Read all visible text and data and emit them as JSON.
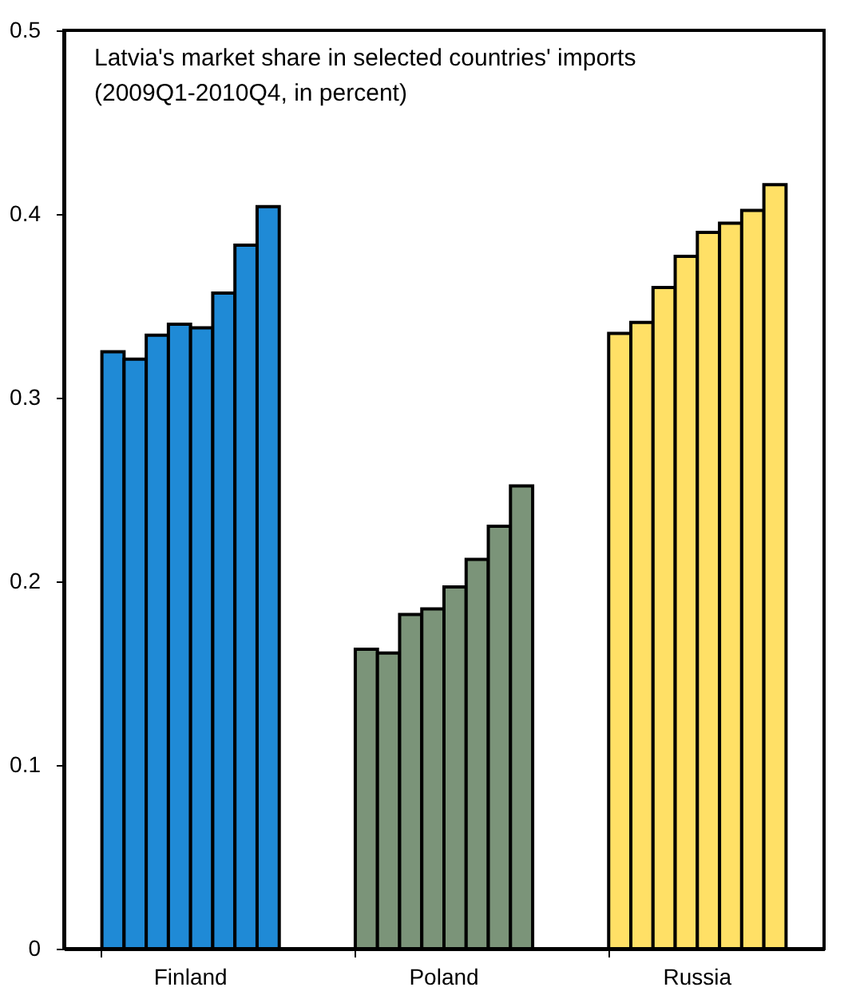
{
  "chart_data": {
    "type": "bar",
    "title": "Latvia's market share in selected countries' imports",
    "subtitle": "(2009Q1-2010Q4, in percent)",
    "categories": [
      "Finland",
      "Poland",
      "Russia"
    ],
    "series": [
      {
        "colors": [
          "#1f8ad6",
          "#7b9479",
          "#ffe066"
        ],
        "values": [
          0.325,
          0.163,
          0.335
        ]
      },
      {
        "colors": [
          "#1f8ad6",
          "#7b9479",
          "#ffe066"
        ],
        "values": [
          0.321,
          0.161,
          0.341
        ]
      },
      {
        "colors": [
          "#1f8ad6",
          "#7b9479",
          "#ffe066"
        ],
        "values": [
          0.334,
          0.182,
          0.36
        ]
      },
      {
        "colors": [
          "#1f8ad6",
          "#7b9479",
          "#ffe066"
        ],
        "values": [
          0.34,
          0.185,
          0.377
        ]
      },
      {
        "colors": [
          "#1f8ad6",
          "#7b9479",
          "#ffe066"
        ],
        "values": [
          0.338,
          0.197,
          0.39
        ]
      },
      {
        "colors": [
          "#1f8ad6",
          "#7b9479",
          "#ffe066"
        ],
        "values": [
          0.357,
          0.212,
          0.395
        ]
      },
      {
        "colors": [
          "#1f8ad6",
          "#7b9479",
          "#ffe066"
        ],
        "values": [
          0.383,
          0.23,
          0.402
        ]
      },
      {
        "colors": [
          "#1f8ad6",
          "#7b9479",
          "#ffe066"
        ],
        "values": [
          0.404,
          0.252,
          0.416
        ]
      }
    ],
    "ylim": [
      0,
      0.5
    ],
    "yticks": [
      0,
      0.1,
      0.2,
      0.3,
      0.4,
      0.5
    ],
    "grid": false
  }
}
